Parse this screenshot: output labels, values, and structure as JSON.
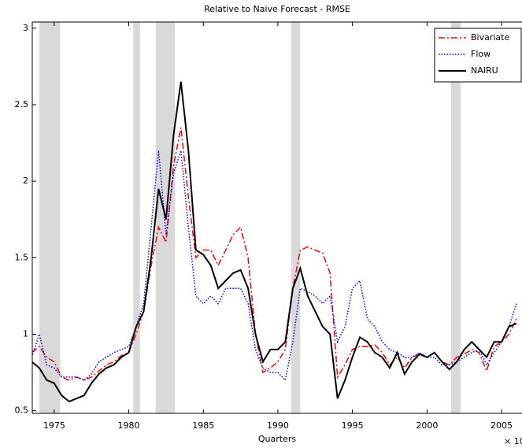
{
  "chart_data": {
    "type": "line",
    "title": "Relative to Naive Forecast - RMSE",
    "x_label": "Quarters",
    "annotation": "× 10",
    "x": [
      1973.5,
      1974,
      1974.5,
      1975,
      1975.5,
      1976,
      1976.5,
      1977,
      1977.5,
      1978,
      1978.5,
      1979,
      1979.5,
      1980,
      1980.5,
      1981,
      1981.5,
      1982,
      1982.5,
      1983,
      1983.5,
      1984,
      1984.5,
      1985,
      1985.5,
      1986,
      1986.5,
      1987,
      1987.5,
      1988,
      1988.5,
      1989,
      1989.5,
      1990,
      1990.5,
      1991,
      1991.5,
      1992,
      1992.5,
      1993,
      1993.5,
      1994,
      1994.5,
      1995,
      1995.5,
      1996,
      1996.5,
      1997,
      1997.5,
      1998,
      1998.5,
      1999,
      1999.5,
      2000,
      2000.5,
      2001,
      2001.5,
      2002,
      2002.5,
      2003,
      2003.5,
      2004,
      2004.5,
      2005,
      2005.5,
      2006
    ],
    "series": [
      {
        "name": "Bivariate",
        "color": "#ff0000",
        "line_style": "dashdot",
        "values": [
          0.88,
          0.92,
          0.85,
          0.82,
          0.72,
          0.7,
          0.72,
          0.7,
          0.72,
          0.76,
          0.8,
          0.82,
          0.86,
          0.88,
          1.0,
          1.15,
          1.45,
          1.7,
          1.6,
          2.1,
          2.35,
          1.9,
          1.5,
          1.55,
          1.55,
          1.45,
          1.55,
          1.65,
          1.7,
          1.5,
          1.0,
          0.75,
          0.78,
          0.82,
          0.9,
          1.3,
          1.55,
          1.57,
          1.55,
          1.53,
          1.4,
          0.72,
          0.8,
          0.9,
          0.92,
          0.92,
          0.93,
          0.88,
          0.8,
          0.85,
          0.78,
          0.85,
          0.87,
          0.85,
          0.88,
          0.82,
          0.8,
          0.85,
          0.87,
          0.9,
          0.88,
          0.76,
          0.92,
          0.95,
          1.0,
          1.1
        ]
      },
      {
        "name": "Flow",
        "color": "#0000ff",
        "line_style": "dotted",
        "values": [
          0.85,
          1.0,
          0.8,
          0.78,
          0.72,
          0.72,
          0.72,
          0.7,
          0.74,
          0.82,
          0.85,
          0.88,
          0.9,
          0.92,
          1.05,
          1.2,
          1.7,
          2.2,
          1.65,
          2.05,
          2.2,
          1.7,
          1.25,
          1.2,
          1.25,
          1.2,
          1.3,
          1.3,
          1.3,
          1.2,
          0.9,
          0.78,
          0.75,
          0.75,
          0.7,
          0.95,
          1.3,
          1.28,
          1.25,
          1.2,
          1.25,
          0.95,
          1.05,
          1.3,
          1.35,
          1.1,
          1.05,
          0.95,
          0.9,
          0.88,
          0.85,
          0.85,
          0.88,
          0.85,
          0.85,
          0.8,
          0.8,
          0.82,
          0.85,
          0.88,
          0.9,
          0.8,
          0.88,
          0.95,
          1.05,
          1.2
        ]
      },
      {
        "name": "NAIRU",
        "color": "#000000",
        "line_style": "solid",
        "values": [
          0.82,
          0.78,
          0.7,
          0.68,
          0.6,
          0.56,
          0.58,
          0.6,
          0.68,
          0.74,
          0.78,
          0.8,
          0.85,
          0.88,
          1.05,
          1.15,
          1.5,
          1.95,
          1.75,
          2.3,
          2.65,
          2.2,
          1.55,
          1.52,
          1.45,
          1.3,
          1.35,
          1.4,
          1.42,
          1.3,
          1.0,
          0.82,
          0.9,
          0.9,
          0.95,
          1.3,
          1.43,
          1.25,
          1.15,
          1.05,
          1.0,
          0.58,
          0.7,
          0.85,
          0.98,
          0.95,
          0.88,
          0.85,
          0.78,
          0.88,
          0.74,
          0.82,
          0.87,
          0.85,
          0.88,
          0.82,
          0.77,
          0.82,
          0.9,
          0.95,
          0.9,
          0.85,
          0.95,
          0.95,
          1.05,
          1.07
        ]
      }
    ],
    "shaded_periods": [
      [
        1974.0,
        1975.4
      ],
      [
        1980.3,
        1980.75
      ],
      [
        1981.8,
        1983.1
      ],
      [
        1990.9,
        1991.5
      ],
      [
        2001.6,
        2002.25
      ]
    ],
    "shade_color": "#d9d9d9",
    "xlim": [
      1973.53,
      2006.37
    ],
    "ylim": [
      0.483,
      3.04
    ],
    "xticks": [
      1975,
      1980,
      1985,
      1990,
      1995,
      2000,
      2005
    ],
    "yticks": [
      0.5,
      1,
      1.5,
      2,
      2.5,
      3
    ],
    "grid": false,
    "legend": "top-right"
  }
}
